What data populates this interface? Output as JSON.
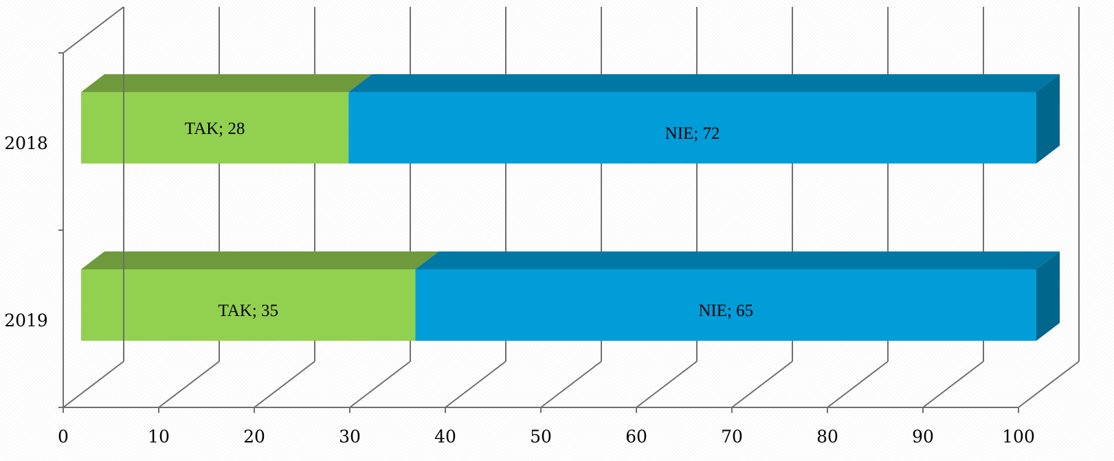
{
  "chart_data": {
    "type": "bar",
    "orientation": "horizontal",
    "stacked": true,
    "three_d": true,
    "categories": [
      "2018",
      "2019"
    ],
    "series": [
      {
        "name": "TAK",
        "values": [
          28,
          35
        ]
      },
      {
        "name": "NIE",
        "values": [
          72,
          65
        ]
      }
    ],
    "data_labels": [
      [
        "TAK; 28",
        "NIE; 72"
      ],
      [
        "TAK; 35",
        "NIE; 65"
      ]
    ],
    "x_ticks": [
      "0",
      "10",
      "20",
      "30",
      "40",
      "50",
      "60",
      "70",
      "80",
      "90",
      "100"
    ],
    "xlim": [
      0,
      100
    ],
    "grid": true,
    "legend": "none",
    "title": "",
    "xlabel": "",
    "ylabel": ""
  },
  "colors": {
    "tak_front": "#92D050",
    "tak_top": "#6E9A3C",
    "nie_front": "#009DD9",
    "nie_top": "#0078A5",
    "nie_side": "#00668C",
    "grid": "#6E6E6E"
  }
}
